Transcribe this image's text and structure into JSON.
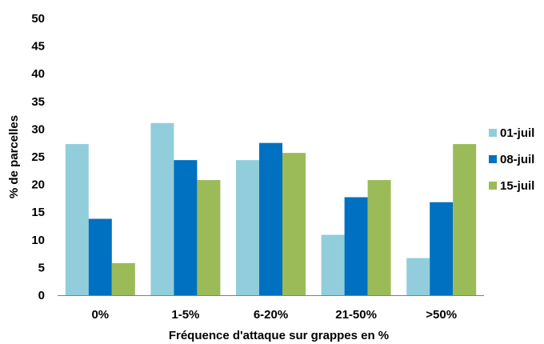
{
  "chart_data": {
    "type": "bar",
    "title": "",
    "xlabel": "Fréquence d'attaque sur grappes en %",
    "ylabel": "% de parcelles",
    "categories": [
      "0%",
      "1-5%",
      "6-20%",
      "21-50%",
      ">50%"
    ],
    "ylim": [
      0,
      50
    ],
    "yticks": [
      0,
      5,
      10,
      15,
      20,
      25,
      30,
      35,
      40,
      45,
      50
    ],
    "grid": false,
    "legend_position": "right",
    "series": [
      {
        "name": "01-juil",
        "color": "#92CDDC",
        "values": [
          27.3,
          31.1,
          24.4,
          10.9,
          6.7
        ]
      },
      {
        "name": "08-juil",
        "color": "#0070C0",
        "values": [
          13.8,
          24.4,
          27.5,
          17.7,
          16.8
        ]
      },
      {
        "name": "15-juil",
        "color": "#9BBB59",
        "values": [
          5.8,
          20.8,
          25.7,
          20.8,
          27.3
        ]
      }
    ]
  }
}
